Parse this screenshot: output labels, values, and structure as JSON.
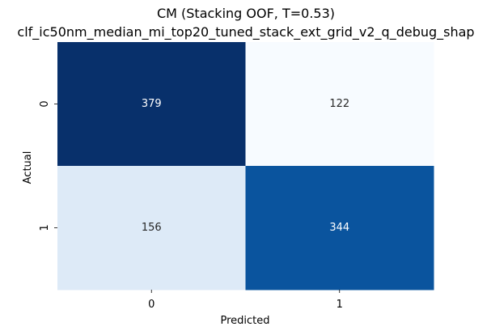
{
  "chart_data": {
    "type": "heatmap",
    "title": "CM (Stacking OOF, T=0.53)",
    "subtitle": "clf_ic50nm_median_mi_top20_tuned_stack_ext_grid_v2_q_debug_shap",
    "xlabel": "Predicted",
    "ylabel": "Actual",
    "x_categories": [
      "0",
      "1"
    ],
    "y_categories": [
      "0",
      "1"
    ],
    "values": [
      [
        379,
        122
      ],
      [
        156,
        344
      ]
    ],
    "colormap": "Blues",
    "color_low": "#f7fbff",
    "color_high": "#08306b",
    "colorbar": false,
    "grid": false
  }
}
